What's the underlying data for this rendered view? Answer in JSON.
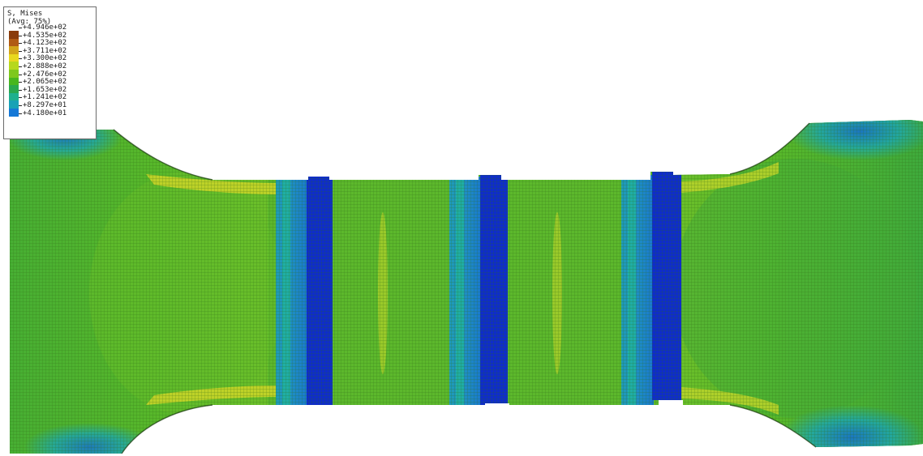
{
  "legend": {
    "title": "S, Mises",
    "subtitle": "(Avg: 75%)",
    "values": [
      "+4.946e+02",
      "+4.535e+02",
      "+4.123e+02",
      "+3.711e+02",
      "+3.300e+02",
      "+2.888e+02",
      "+2.476e+02",
      "+2.065e+02",
      "+1.653e+02",
      "+1.241e+02",
      "+8.297e+01",
      "+4.180e+01"
    ],
    "colors": [
      "#8a3c0c",
      "#b05a14",
      "#d2a41a",
      "#e8d81e",
      "#b6d81c",
      "#7ec81c",
      "#48b61e",
      "#2aa84e",
      "#1fb08e",
      "#18a2b6",
      "#1578d6",
      "#0a34d2"
    ]
  },
  "model": {
    "base_color": "#5cb82c",
    "mesh_color": "#3e7a1e",
    "low_stress_color": "#0e2ccc",
    "mid_stress_color": "#1ca6a8",
    "high_stress_color": "#d8d230"
  }
}
